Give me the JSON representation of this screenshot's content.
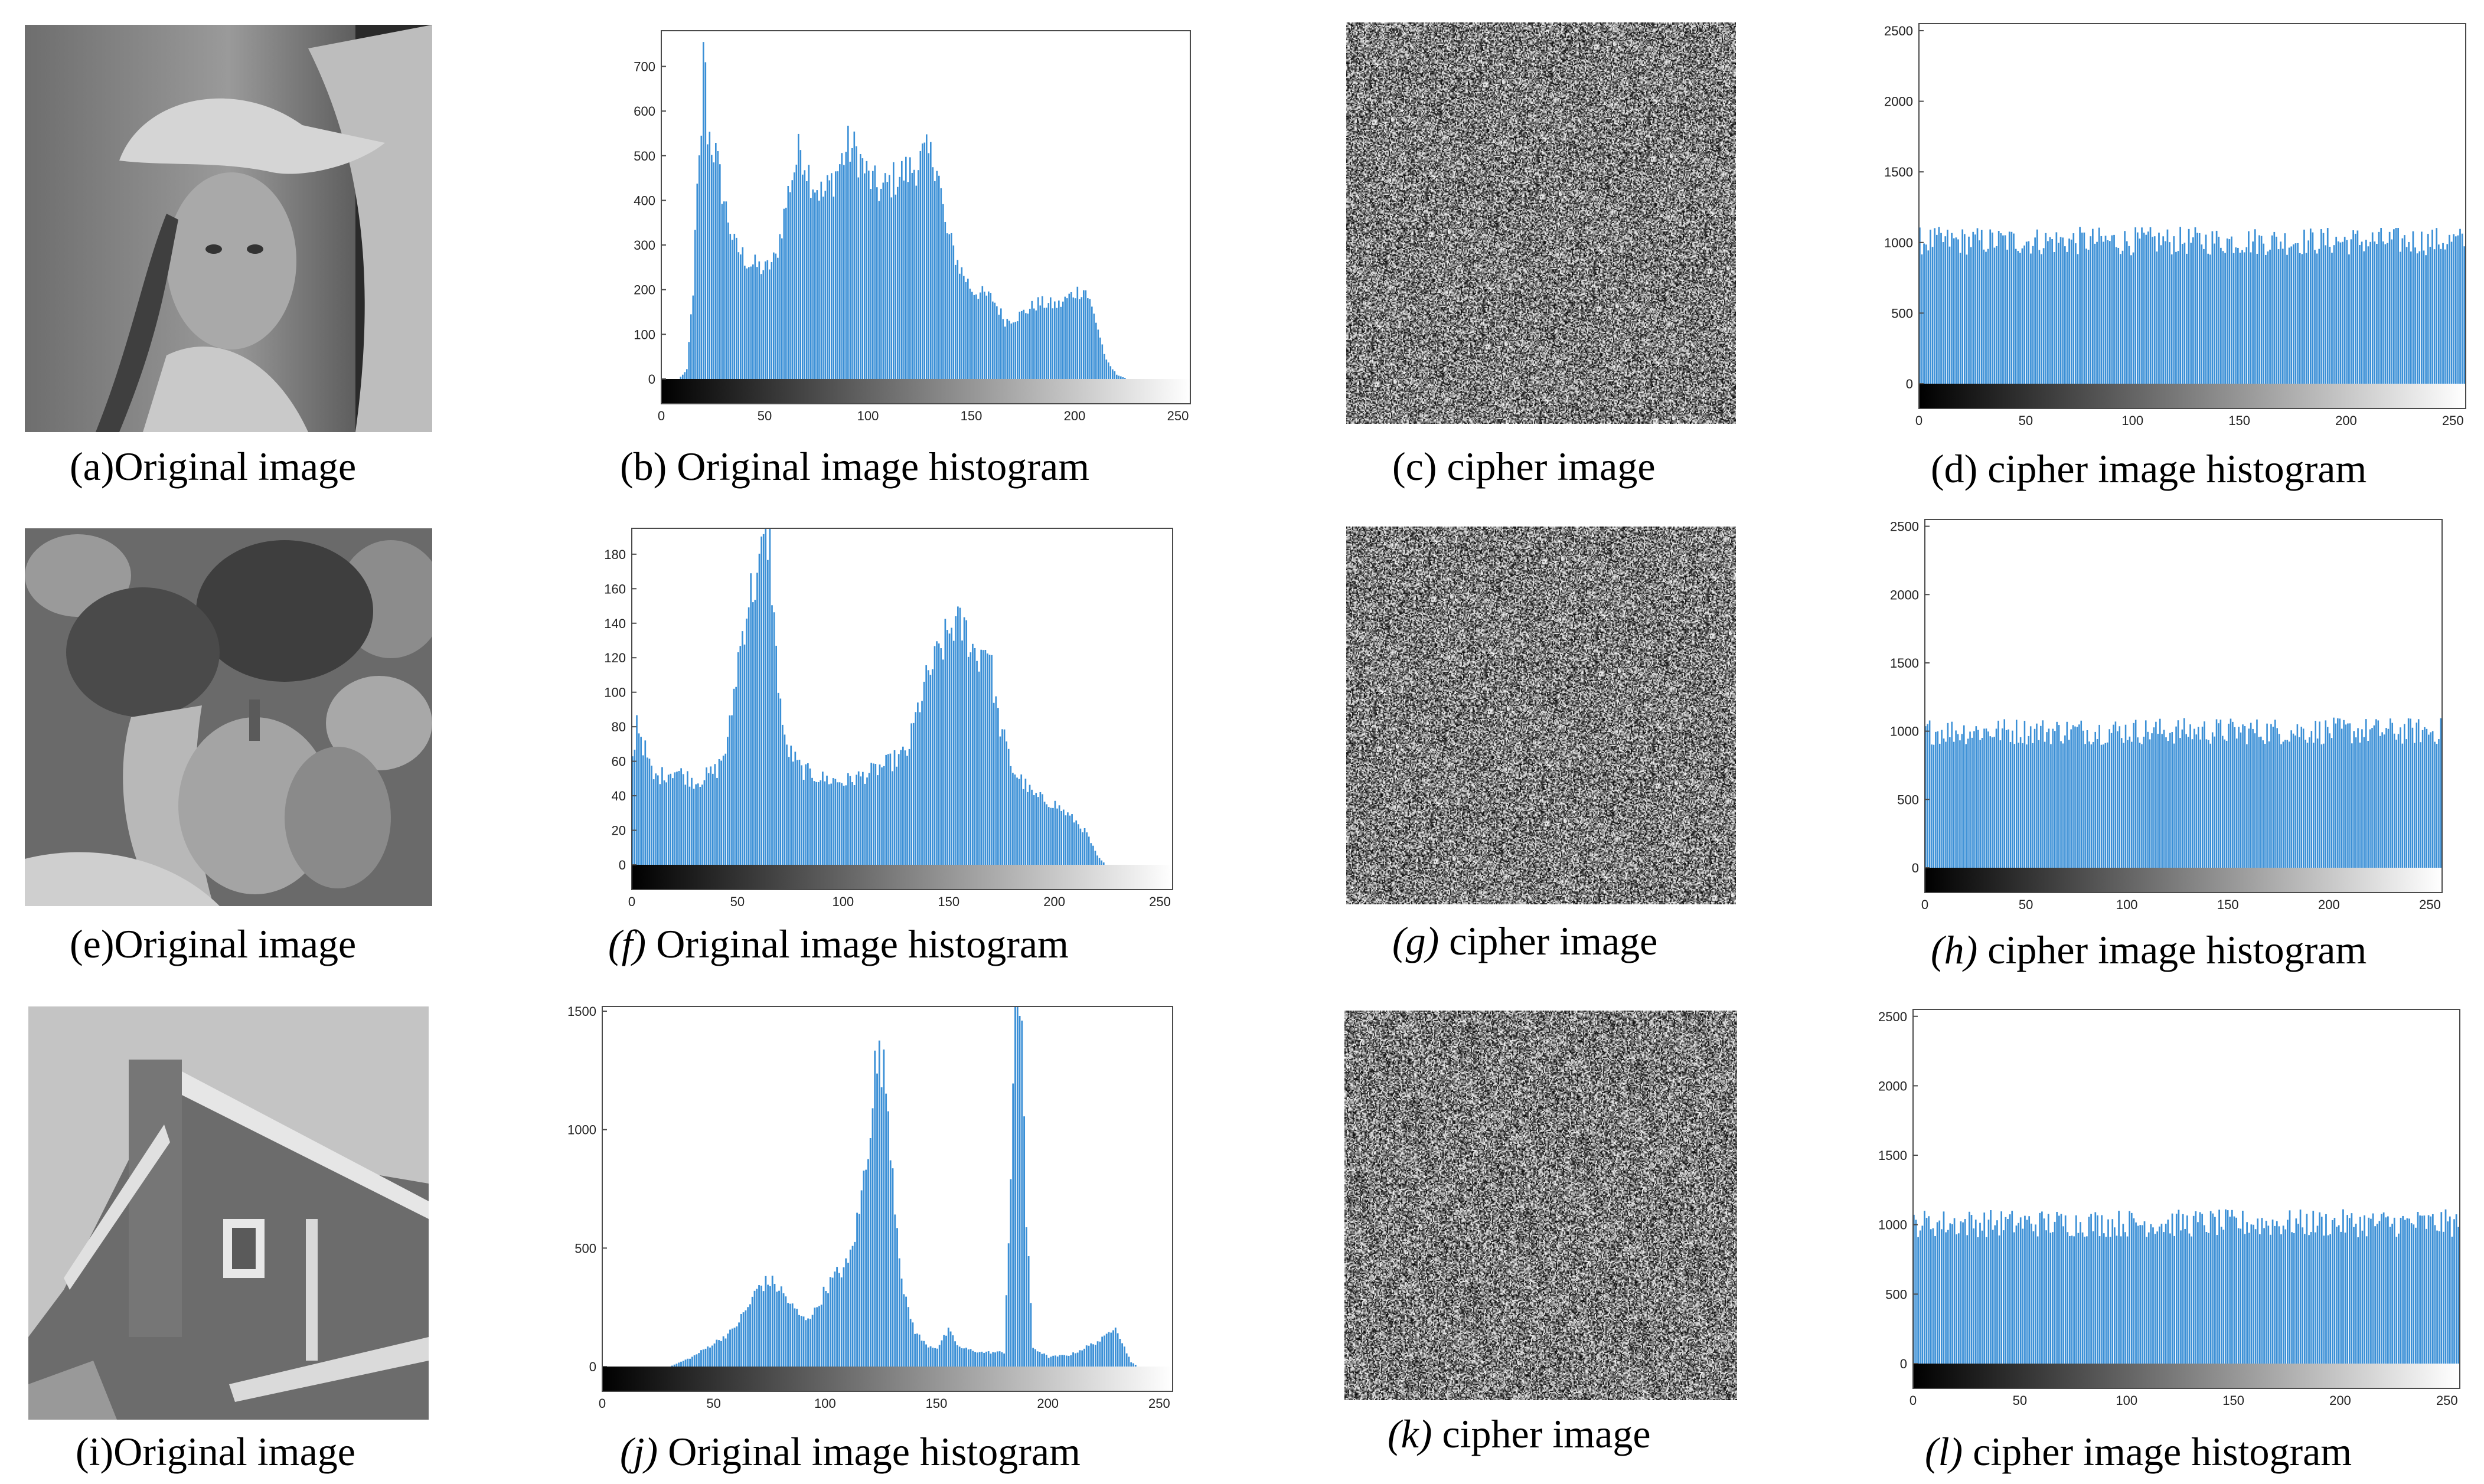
{
  "colors": {
    "bar": "#3a8fd6",
    "frame": "#4a4a4a",
    "background": "#ffffff"
  },
  "panels": [
    {
      "id": "a",
      "kind": "photo",
      "subject": "portrait",
      "caption": "(a)Original image"
    },
    {
      "id": "b",
      "kind": "hist",
      "caption_prefix": "(b)",
      "caption_text": "Original image histogram"
    },
    {
      "id": "c",
      "kind": "noise",
      "caption_prefix": "(c)",
      "caption_text": "cipher image"
    },
    {
      "id": "d",
      "kind": "hist",
      "caption_prefix": "(d)",
      "caption_text": "cipher image histogram"
    },
    {
      "id": "e",
      "kind": "photo",
      "subject": "peppers",
      "caption": "(e)Original image"
    },
    {
      "id": "f",
      "kind": "hist",
      "caption_prefix": "(f)",
      "caption_text": "Original image histogram"
    },
    {
      "id": "g",
      "kind": "noise",
      "caption_prefix": "(g)",
      "caption_text": "cipher image"
    },
    {
      "id": "h",
      "kind": "hist",
      "caption_prefix": "(h)",
      "caption_text": "cipher image histogram"
    },
    {
      "id": "i",
      "kind": "photo",
      "subject": "house",
      "caption": "(i)Original image"
    },
    {
      "id": "j",
      "kind": "hist",
      "caption_prefix": "(j)",
      "caption_text": "Original image histogram"
    },
    {
      "id": "k",
      "kind": "noise",
      "caption_prefix": "(k)",
      "caption_text": "cipher image"
    },
    {
      "id": "l",
      "kind": "hist",
      "caption_prefix": "(l)",
      "caption_text": "cipher image histogram"
    }
  ],
  "chart_data": [
    {
      "id": "b",
      "type": "bar",
      "title": "",
      "xlabel": "",
      "ylabel": "",
      "xlim": [
        0,
        255
      ],
      "ylim": [
        0,
        780
      ],
      "xticks": [
        0,
        50,
        100,
        150,
        200,
        250
      ],
      "yticks": [
        0,
        100,
        200,
        300,
        400,
        500,
        600,
        700
      ],
      "profile": [
        [
          0,
          0
        ],
        [
          8,
          0
        ],
        [
          12,
          20
        ],
        [
          15,
          200
        ],
        [
          17,
          420
        ],
        [
          19,
          520
        ],
        [
          20,
          780
        ],
        [
          22,
          560
        ],
        [
          26,
          500
        ],
        [
          30,
          400
        ],
        [
          35,
          300
        ],
        [
          42,
          260
        ],
        [
          50,
          245
        ],
        [
          55,
          270
        ],
        [
          62,
          440
        ],
        [
          67,
          520
        ],
        [
          72,
          450
        ],
        [
          78,
          410
        ],
        [
          84,
          460
        ],
        [
          90,
          520
        ],
        [
          94,
          510
        ],
        [
          100,
          450
        ],
        [
          106,
          420
        ],
        [
          110,
          440
        ],
        [
          116,
          460
        ],
        [
          121,
          470
        ],
        [
          127,
          500
        ],
        [
          133,
          490
        ],
        [
          137,
          340
        ],
        [
          144,
          250
        ],
        [
          150,
          200
        ],
        [
          160,
          180
        ],
        [
          166,
          130
        ],
        [
          172,
          140
        ],
        [
          182,
          170
        ],
        [
          192,
          165
        ],
        [
          200,
          195
        ],
        [
          205,
          200
        ],
        [
          210,
          130
        ],
        [
          215,
          40
        ],
        [
          220,
          10
        ],
        [
          225,
          0
        ],
        [
          255,
          0
        ]
      ]
    },
    {
      "id": "d",
      "type": "bar",
      "title": "",
      "xlabel": "",
      "ylabel": "",
      "xlim": [
        0,
        255
      ],
      "ylim": [
        0,
        2550
      ],
      "xticks": [
        0,
        50,
        100,
        150,
        200,
        250
      ],
      "yticks": [
        0,
        500,
        1000,
        1500,
        2000,
        2500
      ],
      "profile": [
        [
          0,
          1010
        ],
        [
          255,
          1010
        ]
      ]
    },
    {
      "id": "f",
      "type": "bar",
      "title": "",
      "xlabel": "",
      "ylabel": "",
      "xlim": [
        0,
        255
      ],
      "ylim": [
        0,
        195
      ],
      "xticks": [
        0,
        50,
        100,
        150,
        200,
        250
      ],
      "yticks": [
        0,
        20,
        40,
        60,
        80,
        100,
        120,
        140,
        160,
        180
      ],
      "profile": [
        [
          0,
          60
        ],
        [
          2,
          85
        ],
        [
          5,
          70
        ],
        [
          10,
          50
        ],
        [
          20,
          55
        ],
        [
          30,
          48
        ],
        [
          40,
          55
        ],
        [
          45,
          70
        ],
        [
          50,
          120
        ],
        [
          55,
          155
        ],
        [
          60,
          170
        ],
        [
          63,
          195
        ],
        [
          65,
          185
        ],
        [
          68,
          120
        ],
        [
          72,
          70
        ],
        [
          80,
          55
        ],
        [
          90,
          50
        ],
        [
          100,
          48
        ],
        [
          110,
          52
        ],
        [
          120,
          58
        ],
        [
          130,
          65
        ],
        [
          135,
          90
        ],
        [
          140,
          110
        ],
        [
          148,
          130
        ],
        [
          152,
          140
        ],
        [
          158,
          135
        ],
        [
          163,
          120
        ],
        [
          168,
          130
        ],
        [
          173,
          85
        ],
        [
          180,
          55
        ],
        [
          190,
          40
        ],
        [
          200,
          35
        ],
        [
          210,
          25
        ],
        [
          215,
          18
        ],
        [
          220,
          5
        ],
        [
          224,
          0
        ],
        [
          255,
          0
        ]
      ]
    },
    {
      "id": "h",
      "type": "bar",
      "title": "",
      "xlabel": "",
      "ylabel": "",
      "xlim": [
        0,
        255
      ],
      "ylim": [
        0,
        2550
      ],
      "xticks": [
        0,
        50,
        100,
        150,
        200,
        250
      ],
      "yticks": [
        0,
        500,
        1000,
        1500,
        2000,
        2500
      ],
      "profile": [
        [
          0,
          1000
        ],
        [
          255,
          1000
        ]
      ]
    },
    {
      "id": "j",
      "type": "bar",
      "title": "",
      "xlabel": "",
      "ylabel": "",
      "xlim": [
        0,
        255
      ],
      "ylim": [
        0,
        1520
      ],
      "xticks": [
        0,
        50,
        100,
        150,
        200,
        250
      ],
      "yticks": [
        0,
        500,
        1000,
        1500
      ],
      "profile": [
        [
          0,
          0
        ],
        [
          30,
          0
        ],
        [
          40,
          40
        ],
        [
          50,
          100
        ],
        [
          58,
          150
        ],
        [
          65,
          250
        ],
        [
          70,
          340
        ],
        [
          75,
          360
        ],
        [
          80,
          320
        ],
        [
          85,
          250
        ],
        [
          90,
          200
        ],
        [
          95,
          230
        ],
        [
          100,
          330
        ],
        [
          106,
          400
        ],
        [
          110,
          430
        ],
        [
          115,
          650
        ],
        [
          119,
          950
        ],
        [
          122,
          1250
        ],
        [
          125,
          1300
        ],
        [
          128,
          1100
        ],
        [
          131,
          700
        ],
        [
          135,
          300
        ],
        [
          140,
          150
        ],
        [
          145,
          90
        ],
        [
          150,
          80
        ],
        [
          155,
          150
        ],
        [
          160,
          80
        ],
        [
          170,
          60
        ],
        [
          180,
          60
        ],
        [
          183,
          800
        ],
        [
          185,
          1520
        ],
        [
          188,
          1520
        ],
        [
          190,
          600
        ],
        [
          193,
          80
        ],
        [
          200,
          40
        ],
        [
          210,
          50
        ],
        [
          225,
          120
        ],
        [
          230,
          180
        ],
        [
          233,
          100
        ],
        [
          237,
          20
        ],
        [
          240,
          0
        ],
        [
          255,
          0
        ]
      ]
    },
    {
      "id": "l",
      "type": "bar",
      "title": "",
      "xlabel": "",
      "ylabel": "",
      "xlim": [
        0,
        255
      ],
      "ylim": [
        0,
        2550
      ],
      "xticks": [
        0,
        50,
        100,
        150,
        200,
        250
      ],
      "yticks": [
        0,
        500,
        1000,
        1500,
        2000,
        2500
      ],
      "profile": [
        [
          0,
          1010
        ],
        [
          255,
          1010
        ]
      ]
    }
  ]
}
